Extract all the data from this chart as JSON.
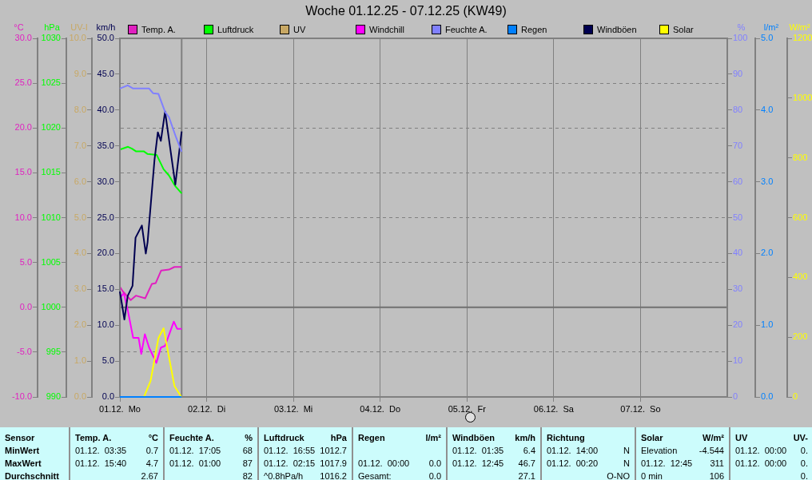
{
  "chart_data": [
    {
      "type": "line",
      "title": "Woche 01.12.25 - 07.12.25 (KW49)",
      "ylabel": "°C",
      "y2label": "hPa",
      "y3label": "UV-I",
      "xlim": [
        "--12-01",
        "--12-08"
      ],
      "xticks": [
        {
          "value": "--12-01",
          "label": "01.12.  Mo"
        },
        {
          "value": "--12-02",
          "label": "02.12.  Di"
        },
        {
          "value": "--12-03",
          "label": "03.12.  Mi"
        },
        {
          "value": "--12-04",
          "label": "04.12.  Do"
        },
        {
          "value": "--12-05",
          "label": "05.12.  Fr"
        },
        {
          "value": "--12-06",
          "label": "06.12.  Sa"
        },
        {
          "value": "--12-07",
          "label": "07.12.  So"
        }
      ],
      "ylim": [
        -10,
        30
      ],
      "yticks": [
        {
          "value": -10,
          "label": "-10.0"
        },
        {
          "value": -5,
          "label": "-5.0"
        },
        {
          "value": 0,
          "label": "0.0"
        },
        {
          "value": 5,
          "label": "5.0"
        },
        {
          "value": 10,
          "label": "10.0"
        },
        {
          "value": 15,
          "label": "15.0"
        },
        {
          "value": 20,
          "label": "20.0"
        },
        {
          "value": 25,
          "label": "25.0"
        },
        {
          "value": 30,
          "label": "30.0"
        }
      ],
      "y2lim": [
        990,
        1030
      ],
      "y2ticks": [
        990,
        995,
        1000,
        1005,
        1010,
        1015,
        1020,
        1025,
        1030
      ],
      "y3lim": [
        0,
        10
      ],
      "y3ticks": [
        {
          "value": 0,
          "label": "0.0"
        },
        {
          "value": 1,
          "label": "1.0"
        },
        {
          "value": 2,
          "label": "2.0"
        },
        {
          "value": 3,
          "label": "3.0"
        },
        {
          "value": 4,
          "label": "4.0"
        },
        {
          "value": 5,
          "label": "5.0"
        },
        {
          "value": 6,
          "label": "6.0"
        },
        {
          "value": 7,
          "label": "7.0"
        },
        {
          "value": 8,
          "label": "8.0"
        },
        {
          "value": 9,
          "label": "9.0"
        },
        {
          "value": 10,
          "label": "10.0"
        }
      ],
      "grid": true,
      "legend": "top",
      "marker": "none",
      "line_style": "solid",
      "ref_lines": [
        {
          "axis": "y",
          "value": 0,
          "color": "#707070"
        },
        {
          "axis": "x",
          "value": "--12-01T17:05",
          "color": "#808080"
        }
      ],
      "series": [
        {
          "name": "Temp. A.",
          "color": "#e020c0",
          "x": [
            "--12-01T00:00",
            "--12-01T00:45",
            "--12-01T03:00",
            "--12-01T04:25",
            "--12-01T07:00",
            "--12-01T08:50",
            "--12-01T09:55",
            "--12-01T11:25",
            "--12-01T13:35",
            "--12-01T15:05",
            "--12-01T17:05"
          ],
          "values": [
            2.3,
            1.8,
            0.8,
            1.3,
            1.0,
            2.6,
            2.7,
            4.1,
            4.2,
            4.5,
            4.5
          ]
        },
        {
          "name": "Luftdruck",
          "color": "#00ff00",
          "axis": "y2",
          "x": [
            "--12-01T00:00",
            "--12-01T02:15",
            "--12-01T03:20",
            "--12-01T04:25",
            "--12-01T06:35",
            "--12-01T07:40",
            "--12-01T10:10",
            "--12-01T12:05",
            "--12-01T13:35",
            "--12-01T15:20",
            "--12-01T17:05"
          ],
          "values": [
            1017.6,
            1017.9,
            1017.7,
            1017.4,
            1017.4,
            1017.1,
            1017.0,
            1015.4,
            1014.7,
            1013.5,
            1012.7
          ]
        },
        {
          "name": "UV",
          "color": "#c8a864",
          "axis": "y3"
        },
        {
          "name": "Windchill",
          "color": "#ff00ff",
          "x": [
            "--12-01T00:00",
            "--12-01T01:05",
            "--12-01T02:10",
            "--12-01T03:40",
            "--12-01T05:10",
            "--12-01T05:55",
            "--12-01T06:55",
            "--12-01T08:05",
            "--12-01T10:05",
            "--12-01T11:20",
            "--12-01T12:30",
            "--12-01T14:55",
            "--12-01T15:50",
            "--12-01T17:05"
          ],
          "values": [
            1.0,
            1.6,
            -0.3,
            -3.4,
            -3.4,
            -5.2,
            -3.0,
            -4.5,
            -6.2,
            -4.5,
            -4.3,
            -1.6,
            -2.4,
            -2.4
          ]
        }
      ],
      "annotations": [
        "Sensor\nMinWert\nMaxWert\nDurchschnitt",
        "Temp. A.\t°C\n01.12.  03:35\t0.7\n01.12.  15:40\t4.7\n\t2.67",
        "Feuchte A.\t%\n01.12.  17:05\t68\n01.12.  01:00\t87\n\t82",
        "Luftdruck\thPa\n01.12.  16:55\t1012.7\n01.12.  02:15\t1017.9\n^0.8hPa/h\t1016.2",
        "Regen\tl/m²\n\t\n01.12.  00:00\t0.0\nGesamt:\t0.0",
        "Windböen\tkm/h\n01.12.  01:35\t6.4\n01.12.  12:45\t46.7\n\t27.1",
        "Richtung\t\n01.12.  14:00\tN\n01.12.  00:20\tN\n\tO-NO",
        "Solar\tW/m²\nElevation\t-4.544\n01.12.  12:45\t311\n0 min\t106",
        "UV\tUV-\n01.12.  00:00\t0.\n01.12.  00:00\t0.\n\t0."
      ]
    },
    {
      "type": "line",
      "ylabel": "km/h",
      "y2label": "%",
      "y3label": "l/m²",
      "tick_labels": "y",
      "legend": "top",
      "marker": "none",
      "line_style": "solid",
      "xlim": [
        "--12-01",
        "--12-08"
      ],
      "ylim": [
        0,
        50
      ],
      "yticks": [
        {
          "value": 0,
          "label": "0.0"
        },
        {
          "value": 5,
          "label": "5.0"
        },
        {
          "value": 10,
          "label": "10.0"
        },
        {
          "value": 15,
          "label": "15.0"
        },
        {
          "value": 20,
          "label": "20.0"
        },
        {
          "value": 25,
          "label": "25.0"
        },
        {
          "value": 30,
          "label": "30.0"
        },
        {
          "value": 35,
          "label": "35.0"
        },
        {
          "value": 40,
          "label": "40.0"
        },
        {
          "value": 45,
          "label": "45.0"
        },
        {
          "value": 50,
          "label": "50.0"
        }
      ],
      "y2lim": [
        0,
        100
      ],
      "y2ticks": [
        0,
        10,
        20,
        30,
        40,
        50,
        60,
        70,
        80,
        90,
        100
      ],
      "y3lim": [
        0,
        5
      ],
      "y3ticks": [
        {
          "value": 0,
          "label": "0.0"
        },
        {
          "value": 1,
          "label": "1.0"
        },
        {
          "value": 2,
          "label": "2.0"
        },
        {
          "value": 3,
          "label": "3.0"
        },
        {
          "value": 4,
          "label": "4.0"
        },
        {
          "value": 5,
          "label": "5.0"
        }
      ],
      "series": [
        {
          "name": "Feuchte A.",
          "color": "#8080ff",
          "axis": "y2",
          "x": [
            "--12-01T00:00",
            "--12-01T02:10",
            "--12-01T03:40",
            "--12-01T08:05",
            "--12-01T09:10",
            "--12-01T10:40",
            "--12-01T12:30",
            "--12-01T13:35",
            "--12-01T15:30",
            "--12-01T17:05"
          ],
          "values": [
            86.0,
            86.9,
            86.0,
            86.0,
            84.7,
            84.5,
            79.5,
            78.0,
            72.5,
            68.4
          ]
        },
        {
          "name": "Regen",
          "color": "#0080ff",
          "axis": "y3",
          "x": [
            "--12-01T00:00",
            "--12-01T17:05"
          ],
          "values": [
            0.0,
            0.0
          ]
        },
        {
          "name": "Windböen",
          "color": "#000050",
          "x": [
            "--12-01T00:00",
            "--12-01T01:15",
            "--12-01T02:10",
            "--12-01T03:30",
            "--12-01T04:20",
            "--12-01T06:05",
            "--12-01T07:10",
            "--12-01T07:40",
            "--12-01T09:35",
            "--12-01T10:30",
            "--12-01T11:20",
            "--12-01T12:30",
            "--12-01T15:20",
            "--12-01T17:05"
          ],
          "values": [
            14.7,
            10.8,
            14.1,
            15.5,
            22.2,
            23.9,
            20.0,
            21.6,
            33.1,
            36.9,
            35.7,
            39.8,
            29.6,
            37.0
          ]
        }
      ]
    },
    {
      "type": "line",
      "ylabel": "W/m²",
      "tick_labels": "y",
      "legend": "top",
      "marker": "none",
      "line_style": "solid",
      "xlim": [
        "--12-01",
        "--12-08"
      ],
      "ylim": [
        0,
        1200
      ],
      "yticks": [
        0,
        200,
        400,
        600,
        800,
        1000,
        1200
      ],
      "series": [
        {
          "name": "Solar",
          "color": "#ffff00",
          "x": [
            "--12-01T06:40",
            "--12-01T08:30",
            "--12-01T10:40",
            "--12-01T12:05",
            "--12-01T13:25",
            "--12-01T15:05",
            "--12-01T17:00"
          ],
          "values": [
            0,
            54,
            197,
            230,
            144,
            37,
            0
          ]
        }
      ]
    }
  ]
}
